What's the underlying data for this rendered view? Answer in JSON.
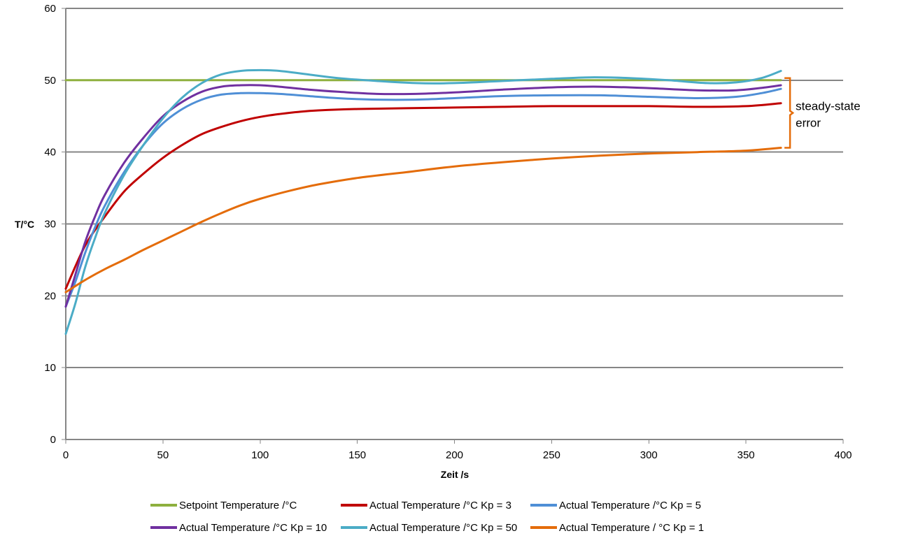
{
  "chart_data": {
    "type": "line",
    "xlabel": "Zeit /s",
    "ylabel": "T/°C",
    "xlim": [
      0,
      400
    ],
    "ylim": [
      0,
      60
    ],
    "xticks": [
      0,
      50,
      100,
      150,
      200,
      250,
      300,
      350,
      400
    ],
    "yticks": [
      0,
      10,
      20,
      30,
      40,
      50,
      60
    ],
    "grid": true,
    "legend_position": "bottom",
    "series": [
      {
        "name": "Setpoint Temperature /°C",
        "color": "#8eb03e",
        "points": [
          [
            0,
            50
          ],
          [
            368,
            50
          ]
        ]
      },
      {
        "name": "Actual Temperature /°C Kp = 3",
        "color": "#c00000",
        "points": [
          [
            0,
            21
          ],
          [
            10,
            27
          ],
          [
            20,
            31
          ],
          [
            30,
            34.5
          ],
          [
            40,
            37
          ],
          [
            50,
            39.2
          ],
          [
            60,
            41
          ],
          [
            70,
            42.5
          ],
          [
            80,
            43.5
          ],
          [
            90,
            44.3
          ],
          [
            100,
            44.9
          ],
          [
            110,
            45.3
          ],
          [
            120,
            45.6
          ],
          [
            130,
            45.8
          ],
          [
            150,
            46
          ],
          [
            175,
            46.1
          ],
          [
            200,
            46.2
          ],
          [
            225,
            46.3
          ],
          [
            250,
            46.4
          ],
          [
            275,
            46.4
          ],
          [
            300,
            46.4
          ],
          [
            325,
            46.3
          ],
          [
            350,
            46.4
          ],
          [
            368,
            46.8
          ]
        ]
      },
      {
        "name": "Actual Temperature /°C Kp = 5",
        "color": "#4f8fd6",
        "points": [
          [
            0,
            18.5
          ],
          [
            5,
            22
          ],
          [
            10,
            26
          ],
          [
            15,
            29.5
          ],
          [
            20,
            32.5
          ],
          [
            30,
            37.2
          ],
          [
            40,
            41
          ],
          [
            50,
            44
          ],
          [
            60,
            46
          ],
          [
            70,
            47.3
          ],
          [
            80,
            48
          ],
          [
            90,
            48.2
          ],
          [
            100,
            48.2
          ],
          [
            110,
            48.1
          ],
          [
            125,
            47.8
          ],
          [
            140,
            47.5
          ],
          [
            160,
            47.3
          ],
          [
            180,
            47.3
          ],
          [
            200,
            47.5
          ],
          [
            225,
            47.8
          ],
          [
            250,
            47.9
          ],
          [
            275,
            47.9
          ],
          [
            300,
            47.7
          ],
          [
            325,
            47.5
          ],
          [
            345,
            47.7
          ],
          [
            358,
            48.2
          ],
          [
            368,
            48.8
          ]
        ]
      },
      {
        "name": "Actual Temperature /°C Kp = 10",
        "color": "#7030a0",
        "points": [
          [
            0,
            18.5
          ],
          [
            5,
            23
          ],
          [
            10,
            27.5
          ],
          [
            15,
            31
          ],
          [
            20,
            34
          ],
          [
            30,
            38.5
          ],
          [
            40,
            42
          ],
          [
            50,
            45
          ],
          [
            60,
            47
          ],
          [
            70,
            48.4
          ],
          [
            80,
            49.1
          ],
          [
            90,
            49.3
          ],
          [
            100,
            49.3
          ],
          [
            110,
            49.1
          ],
          [
            125,
            48.7
          ],
          [
            140,
            48.4
          ],
          [
            160,
            48.1
          ],
          [
            180,
            48.1
          ],
          [
            200,
            48.3
          ],
          [
            225,
            48.7
          ],
          [
            250,
            49
          ],
          [
            275,
            49.1
          ],
          [
            300,
            48.9
          ],
          [
            325,
            48.6
          ],
          [
            345,
            48.6
          ],
          [
            360,
            49
          ],
          [
            368,
            49.3
          ]
        ]
      },
      {
        "name": "Actual Temperature /°C Kp = 50",
        "color": "#4bacc6",
        "points": [
          [
            0,
            14.7
          ],
          [
            5,
            19
          ],
          [
            10,
            24
          ],
          [
            15,
            28
          ],
          [
            20,
            31.5
          ],
          [
            30,
            36.8
          ],
          [
            40,
            41
          ],
          [
            50,
            44.7
          ],
          [
            60,
            47.6
          ],
          [
            70,
            49.6
          ],
          [
            80,
            50.8
          ],
          [
            90,
            51.3
          ],
          [
            100,
            51.4
          ],
          [
            110,
            51.3
          ],
          [
            125,
            50.8
          ],
          [
            140,
            50.3
          ],
          [
            160,
            49.9
          ],
          [
            180,
            49.6
          ],
          [
            200,
            49.6
          ],
          [
            225,
            49.9
          ],
          [
            250,
            50.2
          ],
          [
            270,
            50.4
          ],
          [
            290,
            50.3
          ],
          [
            310,
            50
          ],
          [
            330,
            49.6
          ],
          [
            345,
            49.7
          ],
          [
            358,
            50.3
          ],
          [
            368,
            51.3
          ]
        ]
      },
      {
        "name": "Actual Temperature / °C Kp = 1",
        "color": "#e46c0a",
        "points": [
          [
            0,
            20.5
          ],
          [
            10,
            22.2
          ],
          [
            20,
            23.7
          ],
          [
            30,
            25
          ],
          [
            40,
            26.4
          ],
          [
            50,
            27.7
          ],
          [
            60,
            29
          ],
          [
            70,
            30.3
          ],
          [
            80,
            31.5
          ],
          [
            90,
            32.6
          ],
          [
            100,
            33.5
          ],
          [
            115,
            34.6
          ],
          [
            130,
            35.5
          ],
          [
            150,
            36.4
          ],
          [
            175,
            37.2
          ],
          [
            200,
            38
          ],
          [
            225,
            38.6
          ],
          [
            250,
            39.1
          ],
          [
            275,
            39.5
          ],
          [
            300,
            39.8
          ],
          [
            325,
            40
          ],
          [
            350,
            40.2
          ],
          [
            368,
            40.6
          ]
        ]
      }
    ],
    "annotations": [
      {
        "text_lines": [
          "steady-state",
          "error"
        ],
        "x": 368,
        "y_range": [
          40.6,
          50.3
        ]
      }
    ]
  }
}
